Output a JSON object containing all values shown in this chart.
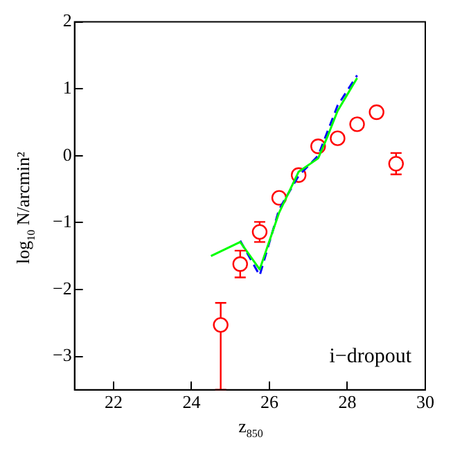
{
  "chart_data": {
    "type": "scatter",
    "xlabel": "z$_{850}$",
    "ylabel": "log$_{10}$ N/arcmin²",
    "xlim": [
      21,
      30
    ],
    "ylim": [
      -3.5,
      2
    ],
    "xticks": [
      22,
      24,
      26,
      28,
      30
    ],
    "yticks": [
      -3,
      -2,
      -1,
      0,
      1,
      2
    ],
    "marker": "circle",
    "grid": false,
    "legend": false,
    "annotations": [
      "i−dropout"
    ],
    "series": [
      {
        "type": "line",
        "color": "#00ff00",
        "line_style": "solid",
        "marker": "none",
        "x": [
          24.5,
          25.25,
          25.75,
          26.25,
          26.75,
          27.25,
          27.5,
          27.75,
          28.25
        ],
        "values": [
          -1.5,
          -1.29,
          -1.7,
          -0.85,
          -0.24,
          -0.04,
          0.3,
          0.67,
          1.16
        ]
      },
      {
        "type": "line",
        "color": "#0000ff",
        "line_style": "dashed",
        "marker": "none",
        "x": [
          25.25,
          25.75,
          26.25,
          26.75,
          27.25,
          27.75,
          28.25
        ],
        "values": [
          -1.27,
          -1.79,
          -0.8,
          -0.3,
          0.0,
          0.75,
          1.2
        ]
      },
      {
        "color": "#ff0000",
        "x": [
          24.75,
          25.25,
          25.75,
          26.25,
          26.75,
          27.25,
          27.75,
          28.25,
          28.75,
          29.25
        ],
        "values": [
          -2.53,
          -1.62,
          -1.14,
          -0.63,
          -0.29,
          0.14,
          0.26,
          0.47,
          0.65,
          -0.12
        ],
        "errors": [
          [
            -3.5,
            -2.2
          ],
          0.2,
          0.15,
          null,
          null,
          null,
          null,
          null,
          null,
          0.16
        ]
      }
    ]
  }
}
